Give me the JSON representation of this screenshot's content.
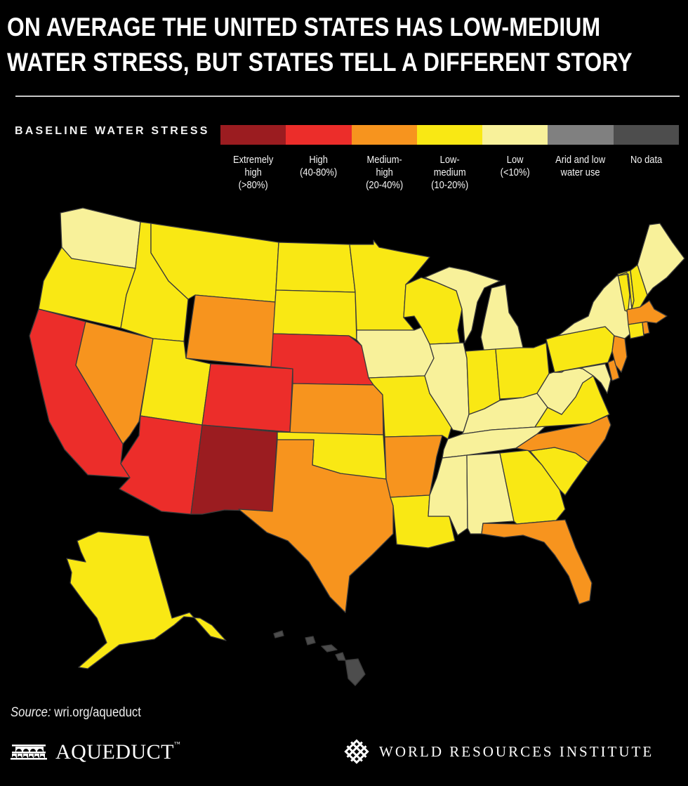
{
  "title": {
    "line1": "ON AVERAGE THE UNITED STATES HAS LOW-MEDIUM",
    "line2": "WATER STRESS, BUT STATES TELL A DIFFERENT STORY"
  },
  "legend": {
    "title": "BASELINE WATER STRESS",
    "categories": [
      {
        "key": "extremely_high",
        "label_lines": [
          "Extremely",
          "high",
          "(>80%)"
        ],
        "color": "#9b1c20"
      },
      {
        "key": "high",
        "label_lines": [
          "High",
          "(40-80%)"
        ],
        "color": "#ec2d2a"
      },
      {
        "key": "medium_high",
        "label_lines": [
          "Medium-",
          "high",
          "(20-40%)"
        ],
        "color": "#f7941e"
      },
      {
        "key": "low_medium",
        "label_lines": [
          "Low-",
          "medium",
          "(10-20%)"
        ],
        "color": "#f9e814"
      },
      {
        "key": "low",
        "label_lines": [
          "Low",
          "(<10%)"
        ],
        "color": "#f8f19a"
      },
      {
        "key": "arid",
        "label_lines": [
          "Arid and low",
          "water use"
        ],
        "color": "#808080"
      },
      {
        "key": "no_data",
        "label_lines": [
          "No data"
        ],
        "color": "#4d4d4d"
      }
    ]
  },
  "chart_data": {
    "type": "choropleth",
    "title": "On average the United States has low-medium water stress, but states tell a different story",
    "legend_title": "Baseline Water Stress",
    "states": {
      "WA": "low",
      "OR": "low_medium",
      "CA": "high",
      "NV": "medium_high",
      "ID": "low_medium",
      "MT": "low_medium",
      "WY": "medium_high",
      "UT": "low_medium",
      "CO": "high",
      "AZ": "high",
      "NM": "extremely_high",
      "ND": "low_medium",
      "SD": "low_medium",
      "NE": "high",
      "KS": "medium_high",
      "OK": "low_medium",
      "TX": "medium_high",
      "MN": "low_medium",
      "IA": "low",
      "MO": "low_medium",
      "AR": "medium_high",
      "LA": "low_medium",
      "WI": "low_medium",
      "IL": "low",
      "MI": "low",
      "IN": "low_medium",
      "OH": "low_medium",
      "KY": "low",
      "TN": "low",
      "MS": "low",
      "AL": "low",
      "GA": "low_medium",
      "FL": "medium_high",
      "SC": "low_medium",
      "NC": "medium_high",
      "VA": "low_medium",
      "WV": "low",
      "MD": "low",
      "DE": "medium_high",
      "PA": "low_medium",
      "NJ": "medium_high",
      "NY": "low",
      "CT": "low_medium",
      "RI": "medium_high",
      "MA": "medium_high",
      "VT": "low_medium",
      "NH": "low_medium",
      "ME": "low",
      "AK": "low_medium",
      "HI": "no_data"
    }
  },
  "footer": {
    "source_label": "Source:",
    "source_value": "wri.org/aqueduct",
    "aqueduct_logo": "AQUEDUCT",
    "aqueduct_tm": "™",
    "wri_logo": "WORLD RESOURCES INSTITUTE"
  }
}
